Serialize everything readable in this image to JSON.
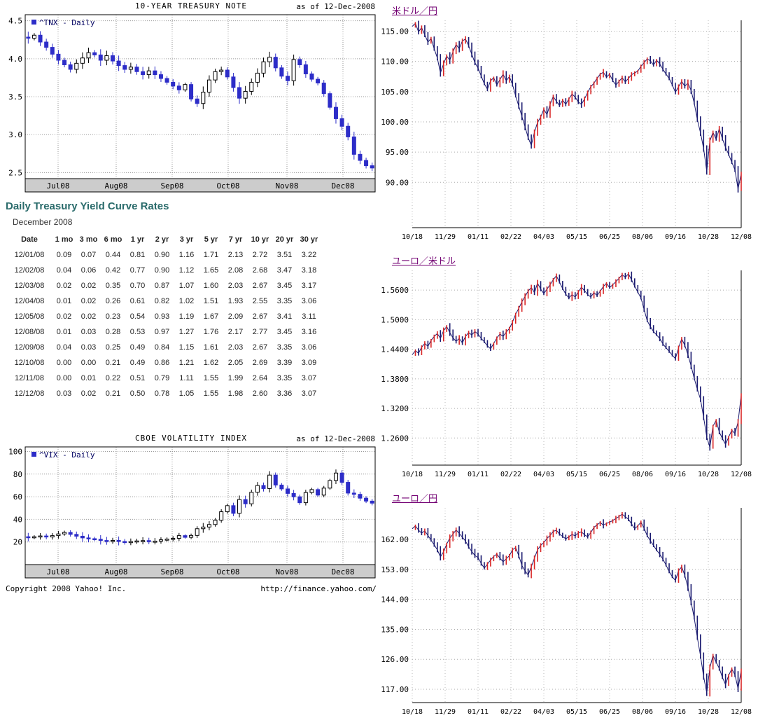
{
  "colors": {
    "heading_teal": "#2a6b6b",
    "link_purple": "#730073",
    "candle_blue": "#2d2dc8",
    "fx_red": "#d92525",
    "fx_navy": "#1b1b70",
    "grid_gray": "#999999",
    "band_gray": "#cccccc",
    "legend_text": "#000060"
  },
  "treasury": {
    "heading": "Daily Treasury Yield Curve Rates",
    "month": "December 2008",
    "columns": [
      "Date",
      "1 mo",
      "3 mo",
      "6 mo",
      "1 yr",
      "2 yr",
      "3 yr",
      "5 yr",
      "7 yr",
      "10 yr",
      "20 yr",
      "30 yr"
    ],
    "rows": [
      [
        "12/01/08",
        "0.09",
        "0.07",
        "0.44",
        "0.81",
        "0.90",
        "1.16",
        "1.71",
        "2.13",
        "2.72",
        "3.51",
        "3.22"
      ],
      [
        "12/02/08",
        "0.04",
        "0.06",
        "0.42",
        "0.77",
        "0.90",
        "1.12",
        "1.65",
        "2.08",
        "2.68",
        "3.47",
        "3.18"
      ],
      [
        "12/03/08",
        "0.02",
        "0.02",
        "0.35",
        "0.70",
        "0.87",
        "1.07",
        "1.60",
        "2.03",
        "2.67",
        "3.45",
        "3.17"
      ],
      [
        "12/04/08",
        "0.01",
        "0.02",
        "0.26",
        "0.61",
        "0.82",
        "1.02",
        "1.51",
        "1.93",
        "2.55",
        "3.35",
        "3.06"
      ],
      [
        "12/05/08",
        "0.02",
        "0.02",
        "0.23",
        "0.54",
        "0.93",
        "1.19",
        "1.67",
        "2.09",
        "2.67",
        "3.41",
        "3.11"
      ],
      [
        "12/08/08",
        "0.01",
        "0.03",
        "0.28",
        "0.53",
        "0.97",
        "1.27",
        "1.76",
        "2.17",
        "2.77",
        "3.45",
        "3.16"
      ],
      [
        "12/09/08",
        "0.04",
        "0.03",
        "0.25",
        "0.49",
        "0.84",
        "1.15",
        "1.61",
        "2.03",
        "2.67",
        "3.35",
        "3.06"
      ],
      [
        "12/10/08",
        "0.00",
        "0.00",
        "0.21",
        "0.49",
        "0.86",
        "1.21",
        "1.62",
        "2.05",
        "2.69",
        "3.39",
        "3.09"
      ],
      [
        "12/11/08",
        "0.00",
        "0.01",
        "0.22",
        "0.51",
        "0.79",
        "1.11",
        "1.55",
        "1.99",
        "2.64",
        "3.35",
        "3.07"
      ],
      [
        "12/12/08",
        "0.03",
        "0.02",
        "0.21",
        "0.50",
        "0.78",
        "1.05",
        "1.55",
        "1.98",
        "2.60",
        "3.36",
        "3.07"
      ]
    ]
  },
  "footer": {
    "copyright": "Copyright 2008 Yahoo! Inc.",
    "url": "http://finance.yahoo.com/"
  },
  "chart_data": [
    {
      "id": "tnx",
      "type": "candlestick",
      "title": "10-YEAR TREASURY NOTE",
      "as_of": "as of 12-Dec-2008",
      "legend": "^TNX - Daily",
      "ylim": [
        2.42,
        4.58
      ],
      "yticks": [
        4.5,
        4.0,
        3.5,
        3.0,
        2.5
      ],
      "ytick_labels": [
        "4.5",
        "4.0",
        "3.5",
        "3.0",
        "2.5"
      ],
      "xticks": [
        "Jul08",
        "Aug08",
        "Sep08",
        "Oct08",
        "Nov08",
        "Dec08"
      ],
      "xtick_pos": [
        0.094,
        0.26,
        0.42,
        0.58,
        0.748,
        0.908
      ],
      "wick": 0.05,
      "closes": [
        4.27,
        4.31,
        4.22,
        4.15,
        4.06,
        3.98,
        3.92,
        3.86,
        3.94,
        4.01,
        4.08,
        4.05,
        3.98,
        4.04,
        3.97,
        3.91,
        3.86,
        3.89,
        3.83,
        3.79,
        3.84,
        3.79,
        3.74,
        3.69,
        3.64,
        3.59,
        3.66,
        3.47,
        3.41,
        3.56,
        3.72,
        3.83,
        3.85,
        3.76,
        3.62,
        3.48,
        3.57,
        3.69,
        3.81,
        3.96,
        4.02,
        3.88,
        3.77,
        3.71,
        3.99,
        3.92,
        3.8,
        3.73,
        3.68,
        3.54,
        3.36,
        3.21,
        3.11,
        2.97,
        2.74,
        2.66,
        2.59,
        2.56
      ]
    },
    {
      "id": "vix",
      "type": "candlestick",
      "title": "CBOE VOLATILITY INDEX",
      "as_of": "as of 12-Dec-2008",
      "legend": "^VIX - Daily",
      "ylim": [
        0,
        104
      ],
      "yticks": [
        100,
        80,
        60,
        40,
        20
      ],
      "ytick_labels": [
        "100",
        "80",
        "60",
        "40",
        "20"
      ],
      "xticks": [
        "Jul08",
        "Aug08",
        "Sep08",
        "Oct08",
        "Nov08",
        "Dec08"
      ],
      "xtick_pos": [
        0.094,
        0.26,
        0.42,
        0.58,
        0.748,
        0.908
      ],
      "wick": 2.4,
      "closes": [
        23.9,
        24.6,
        25.3,
        24.4,
        25.6,
        27.1,
        28.4,
        26.7,
        25.1,
        23.6,
        22.9,
        22.4,
        21.3,
        20.7,
        21.4,
        20.4,
        19.9,
        20.3,
        20.9,
        21.2,
        20.6,
        20.7,
        21.9,
        22.5,
        23.2,
        25.6,
        24.1,
        25.8,
        31.7,
        33.2,
        35.4,
        39.2,
        46.7,
        52.1,
        45.3,
        57.5,
        53.7,
        63.9,
        69.9,
        67.2,
        79.1,
        70.3,
        66.9,
        62.9,
        59.9,
        54.7,
        63.7,
        66.3,
        61.4,
        67.6,
        74.3,
        80.9,
        72.7,
        63.2,
        62.1,
        58.7,
        56.1,
        54.3
      ]
    },
    {
      "id": "usdjpy",
      "type": "line",
      "title": "米ドル／円",
      "ylim": [
        82.5,
        116.8
      ],
      "yticks": [
        115,
        110,
        105,
        100,
        95,
        90
      ],
      "ytick_labels": [
        "115.00",
        "110.00",
        "105.00",
        "100.00",
        "95.00",
        "90.00"
      ],
      "xticks": [
        "10/18",
        "11/29",
        "01/11",
        "02/22",
        "04/03",
        "05/15",
        "06/25",
        "08/06",
        "09/16",
        "10/28",
        "12/08"
      ],
      "wick": 0.45,
      "values": [
        115.8,
        116.3,
        114.9,
        115.6,
        114.4,
        113.2,
        113.8,
        112.1,
        110.6,
        108.1,
        109.6,
        110.9,
        110.2,
        111.6,
        112.8,
        112.1,
        113.4,
        113.7,
        112.6,
        111.2,
        109.8,
        108.9,
        107.6,
        106.3,
        105.4,
        106.8,
        107.3,
        106.1,
        107.0,
        107.9,
        106.8,
        107.5,
        106.2,
        104.3,
        102.6,
        100.9,
        99.2,
        97.4,
        96.1,
        98.3,
        99.9,
        100.8,
        102.1,
        101.2,
        102.9,
        104.2,
        103.4,
        102.7,
        103.6,
        102.9,
        103.8,
        104.6,
        104.1,
        103.3,
        102.9,
        103.8,
        104.9,
        105.8,
        106.4,
        107.2,
        107.9,
        108.2,
        107.4,
        107.9,
        106.8,
        106.1,
        106.7,
        107.3,
        106.6,
        107.2,
        107.8,
        108.1,
        108.4,
        109.2,
        109.8,
        110.4,
        110.1,
        109.4,
        110.2,
        109.6,
        108.7,
        107.9,
        107.2,
        106.1,
        104.9,
        105.8,
        106.7,
        105.9,
        106.4,
        105.2,
        103.1,
        100.4,
        98.2,
        95.6,
        91.8,
        96.8,
        98.3,
        97.1,
        98.9,
        97.2,
        95.8,
        94.6,
        93.3,
        92.1,
        88.9,
        91.4
      ]
    },
    {
      "id": "eurusd",
      "type": "line",
      "title": "ユーロ／米ドル",
      "ylim": [
        1.205,
        1.6
      ],
      "yticks": [
        1.56,
        1.5,
        1.44,
        1.38,
        1.32,
        1.26
      ],
      "ytick_labels": [
        "1.5600",
        "1.5000",
        "1.4400",
        "1.3800",
        "1.3200",
        "1.2600"
      ],
      "xticks": [
        "10/18",
        "11/29",
        "01/11",
        "02/22",
        "04/03",
        "05/15",
        "06/25",
        "08/06",
        "09/16",
        "10/28",
        "12/08"
      ],
      "wick": 0.005,
      "values": [
        1.429,
        1.437,
        1.432,
        1.444,
        1.452,
        1.446,
        1.458,
        1.466,
        1.472,
        1.462,
        1.478,
        1.486,
        1.474,
        1.463,
        1.456,
        1.462,
        1.453,
        1.466,
        1.474,
        1.469,
        1.476,
        1.471,
        1.462,
        1.455,
        1.447,
        1.441,
        1.452,
        1.463,
        1.471,
        1.466,
        1.475,
        1.482,
        1.495,
        1.511,
        1.523,
        1.536,
        1.547,
        1.558,
        1.565,
        1.555,
        1.574,
        1.562,
        1.553,
        1.562,
        1.571,
        1.581,
        1.589,
        1.576,
        1.563,
        1.552,
        1.544,
        1.551,
        1.546,
        1.556,
        1.566,
        1.559,
        1.551,
        1.546,
        1.555,
        1.549,
        1.558,
        1.567,
        1.574,
        1.565,
        1.571,
        1.577,
        1.584,
        1.591,
        1.586,
        1.593,
        1.581,
        1.568,
        1.556,
        1.544,
        1.521,
        1.498,
        1.486,
        1.476,
        1.469,
        1.462,
        1.451,
        1.443,
        1.436,
        1.428,
        1.421,
        1.443,
        1.461,
        1.448,
        1.429,
        1.406,
        1.381,
        1.359,
        1.339,
        1.302,
        1.262,
        1.241,
        1.284,
        1.296,
        1.272,
        1.259,
        1.247,
        1.262,
        1.276,
        1.269,
        1.292,
        1.347
      ]
    },
    {
      "id": "eurjpy",
      "type": "line",
      "title": "ユーロ／円",
      "ylim": [
        113,
        171.5
      ],
      "yticks": [
        162,
        153,
        144,
        135,
        126,
        117
      ],
      "ytick_labels": [
        "162.00",
        "153.00",
        "144.00",
        "135.00",
        "126.00",
        "117.00"
      ],
      "xticks": [
        "10/18",
        "11/29",
        "01/11",
        "02/22",
        "04/03",
        "05/15",
        "06/25",
        "08/06",
        "09/16",
        "10/28",
        "12/08"
      ],
      "wick": 0.8,
      "values": [
        165.2,
        166.1,
        164.8,
        163.9,
        164.6,
        163.2,
        161.8,
        160.4,
        158.9,
        156.8,
        158.3,
        160.6,
        162.4,
        163.6,
        164.9,
        163.8,
        162.7,
        161.5,
        159.8,
        158.4,
        157.2,
        156.6,
        154.8,
        153.4,
        154.6,
        155.8,
        156.9,
        157.6,
        156.4,
        155.3,
        156.2,
        157.1,
        158.9,
        159.6,
        157.1,
        154.2,
        152.6,
        151.3,
        153.8,
        156.4,
        158.9,
        160.2,
        161.1,
        162.3,
        163.2,
        164.4,
        164.8,
        163.6,
        162.9,
        162.2,
        162.8,
        163.5,
        163.1,
        163.9,
        164.3,
        163.4,
        162.8,
        164.1,
        165.6,
        166.4,
        167.1,
        166.3,
        166.8,
        167.2,
        167.7,
        168.3,
        168.9,
        169.6,
        168.8,
        168.1,
        166.7,
        165.2,
        166.1,
        167.2,
        165.4,
        163.1,
        161.6,
        160.2,
        158.8,
        157.6,
        156.1,
        154.3,
        152.4,
        150.8,
        149.7,
        152.6,
        153.8,
        151.2,
        147.6,
        143.2,
        138.4,
        132.6,
        127.1,
        120.8,
        115.9,
        123.4,
        127.2,
        125.1,
        123.3,
        120.6,
        118.4,
        121.2,
        123.1,
        121.4,
        117.2,
        122.6
      ]
    }
  ]
}
